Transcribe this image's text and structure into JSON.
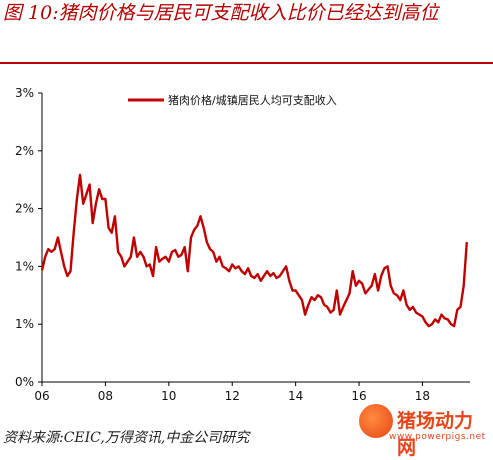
{
  "figure": {
    "title": "图 10:猪肉价格与居民可支配收入比价已经达到高位",
    "source": "资料来源:CEIC,万得资讯,中金公司研究"
  },
  "watermark": {
    "brand": "猪场动力网",
    "url": "www.powerpigs.net"
  },
  "chart_data": {
    "type": "line",
    "title": "",
    "xlabel": "",
    "ylabel": "",
    "x_tick_labels": [
      "06",
      "08",
      "10",
      "12",
      "14",
      "16",
      "18"
    ],
    "y_tick_labels": [
      "0%",
      "1%",
      "1%",
      "2%",
      "2%",
      "3%"
    ],
    "xlim": [
      2006,
      2019.5
    ],
    "ylim": [
      0,
      3
    ],
    "legend": "top-center",
    "grid": false,
    "series": [
      {
        "name": "猪肉价格/城镇居民人均可支配收入",
        "color": "#c00000",
        "x": [
          2006.0,
          2006.1,
          2006.2,
          2006.3,
          2006.4,
          2006.5,
          2006.6,
          2006.7,
          2006.8,
          2006.9,
          2007.0,
          2007.1,
          2007.2,
          2007.3,
          2007.4,
          2007.5,
          2007.6,
          2007.7,
          2007.8,
          2007.9,
          2008.0,
          2008.1,
          2008.2,
          2008.3,
          2008.4,
          2008.5,
          2008.6,
          2008.7,
          2008.8,
          2008.9,
          2009.0,
          2009.1,
          2009.2,
          2009.3,
          2009.4,
          2009.5,
          2009.6,
          2009.7,
          2009.8,
          2009.9,
          2010.0,
          2010.1,
          2010.2,
          2010.3,
          2010.4,
          2010.5,
          2010.6,
          2010.7,
          2010.8,
          2010.9,
          2011.0,
          2011.1,
          2011.2,
          2011.3,
          2011.4,
          2011.5,
          2011.6,
          2011.7,
          2011.8,
          2011.9,
          2012.0,
          2012.1,
          2012.2,
          2012.3,
          2012.4,
          2012.5,
          2012.6,
          2012.7,
          2012.8,
          2012.9,
          2013.0,
          2013.1,
          2013.2,
          2013.3,
          2013.4,
          2013.5,
          2013.6,
          2013.7,
          2013.8,
          2013.9,
          2014.0,
          2014.1,
          2014.2,
          2014.3,
          2014.4,
          2014.5,
          2014.6,
          2014.7,
          2014.8,
          2014.9,
          2015.0,
          2015.1,
          2015.2,
          2015.3,
          2015.4,
          2015.5,
          2015.6,
          2015.7,
          2015.8,
          2015.9,
          2016.0,
          2016.1,
          2016.2,
          2016.3,
          2016.4,
          2016.5,
          2016.6,
          2016.7,
          2016.8,
          2016.9,
          2017.0,
          2017.1,
          2017.2,
          2017.3,
          2017.4,
          2017.5,
          2017.6,
          2017.7,
          2017.8,
          2017.9,
          2018.0,
          2018.1,
          2018.2,
          2018.3,
          2018.4,
          2018.5,
          2018.6,
          2018.7,
          2018.8,
          2018.9,
          2019.0,
          2019.1,
          2019.2,
          2019.3,
          2019.4
        ],
        "values": [
          1.16,
          1.3,
          1.38,
          1.35,
          1.38,
          1.5,
          1.35,
          1.2,
          1.1,
          1.15,
          1.55,
          1.9,
          2.15,
          1.85,
          1.95,
          2.05,
          1.65,
          1.85,
          2.0,
          1.9,
          1.9,
          1.6,
          1.55,
          1.72,
          1.35,
          1.3,
          1.2,
          1.25,
          1.3,
          1.5,
          1.3,
          1.35,
          1.3,
          1.2,
          1.22,
          1.1,
          1.4,
          1.25,
          1.28,
          1.3,
          1.25,
          1.35,
          1.37,
          1.3,
          1.32,
          1.4,
          1.15,
          1.5,
          1.58,
          1.62,
          1.72,
          1.6,
          1.45,
          1.38,
          1.35,
          1.25,
          1.3,
          1.2,
          1.18,
          1.15,
          1.22,
          1.18,
          1.2,
          1.15,
          1.12,
          1.18,
          1.1,
          1.08,
          1.12,
          1.05,
          1.1,
          1.15,
          1.1,
          1.13,
          1.08,
          1.1,
          1.15,
          1.2,
          1.05,
          0.95,
          0.95,
          0.9,
          0.85,
          0.7,
          0.8,
          0.88,
          0.85,
          0.9,
          0.88,
          0.8,
          0.78,
          0.72,
          0.75,
          0.95,
          0.7,
          0.78,
          0.85,
          0.92,
          1.15,
          1.0,
          1.05,
          1.02,
          0.92,
          0.96,
          1.0,
          1.12,
          0.95,
          1.1,
          1.18,
          1.2,
          1.0,
          0.92,
          0.9,
          0.85,
          0.95,
          0.8,
          0.75,
          0.78,
          0.72,
          0.7,
          0.68,
          0.62,
          0.58,
          0.6,
          0.65,
          0.62,
          0.7,
          0.66,
          0.65,
          0.6,
          0.58,
          0.75,
          0.78,
          1.0,
          1.45
        ]
      }
    ]
  }
}
